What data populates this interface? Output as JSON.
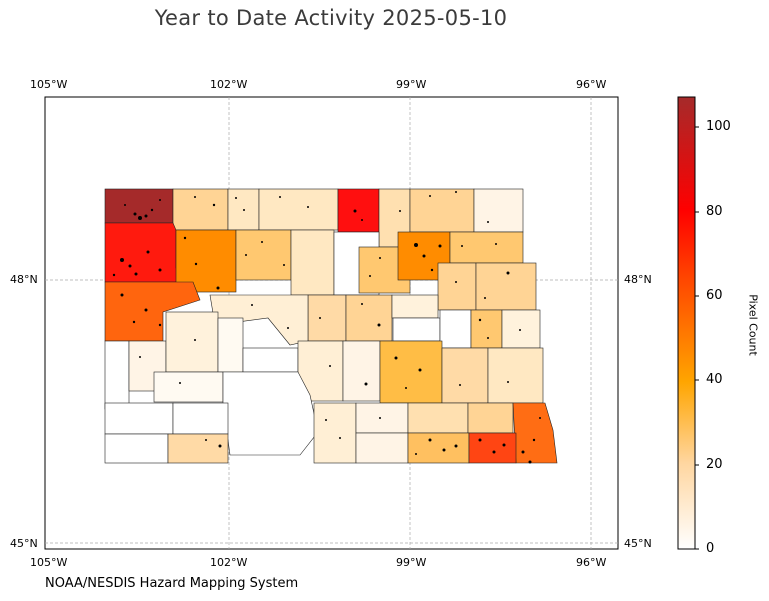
{
  "title": "Year to Date Activity 2025-05-10",
  "credit": "NOAA/NESDIS Hazard Mapping System",
  "map": {
    "lon_labels": [
      "105°W",
      "102°W",
      "99°W",
      "96°W"
    ],
    "lat_labels": [
      "48°N",
      "45°N"
    ],
    "gridlines": true
  },
  "colorbar": {
    "label": "Pixel Count",
    "ticks": [
      "0",
      "20",
      "40",
      "60",
      "80",
      "100"
    ],
    "range": [
      0,
      107
    ],
    "colors": [
      "#ffffff",
      "#ffd27a",
      "#ffa200",
      "#ff0000",
      "#a52a2a"
    ]
  },
  "legend": {}
}
